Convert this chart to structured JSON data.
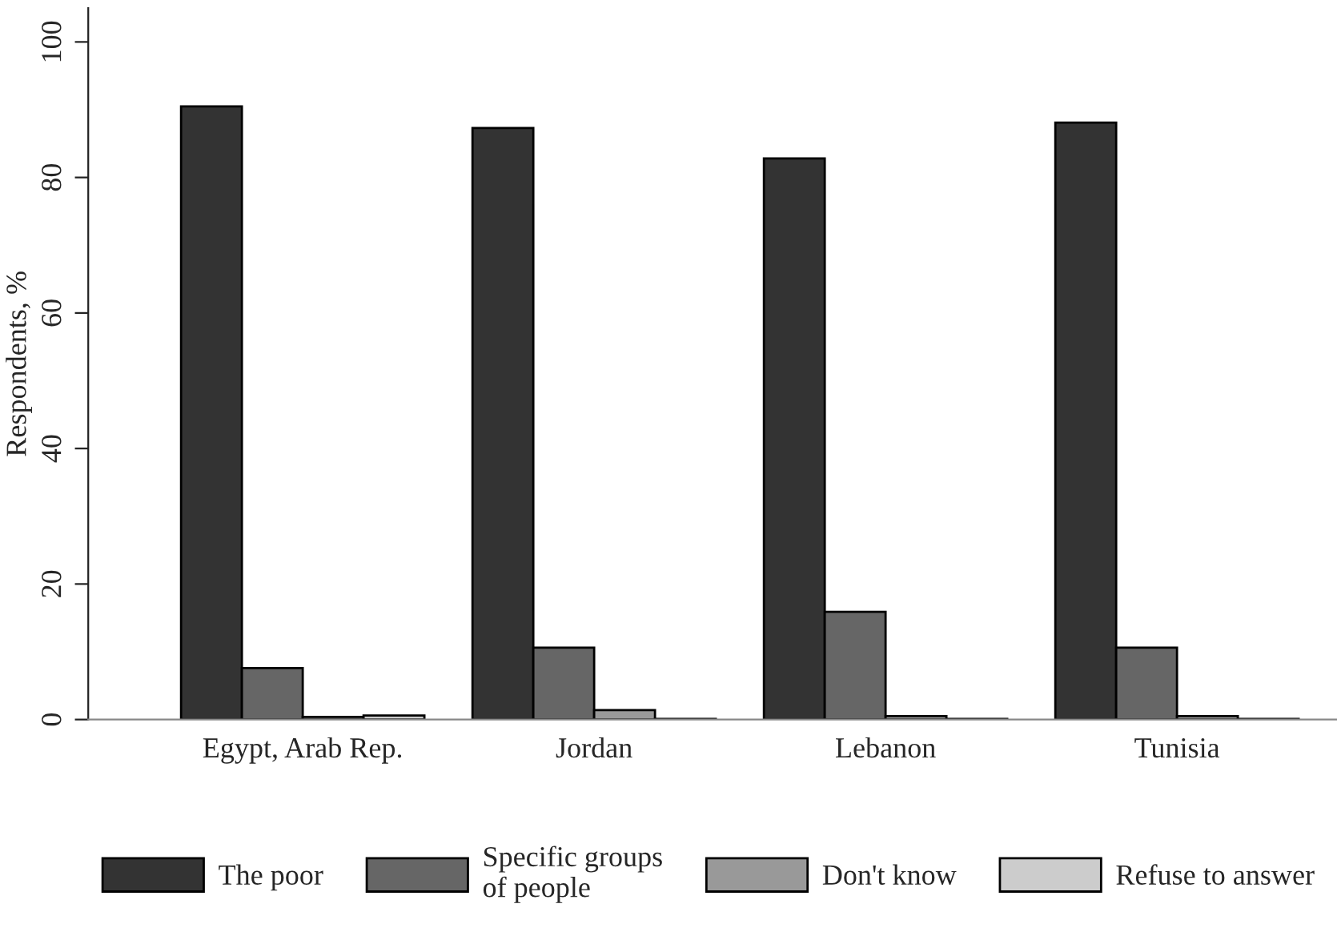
{
  "chart_data": {
    "type": "bar",
    "ylabel": "Respondents, %",
    "categories": [
      "Egypt, Arab Rep.",
      "Jordan",
      "Lebanon",
      "Tunisia"
    ],
    "series": [
      {
        "name": "The poor",
        "color": "#333333",
        "values": [
          90.5,
          87.3,
          82.8,
          88.1
        ]
      },
      {
        "name": "Specific groups\nof people",
        "color": "#666666",
        "values": [
          7.6,
          10.6,
          15.9,
          10.6
        ]
      },
      {
        "name": "Don't know",
        "color": "#999999",
        "values": [
          0.4,
          1.4,
          0.5,
          0.5
        ]
      },
      {
        "name": "Refuse to answer",
        "color": "#cccccc",
        "values": [
          0.6,
          0.1,
          0.1,
          0.1
        ]
      }
    ],
    "ylim": [
      0,
      105
    ],
    "yticks": [
      0,
      20,
      40,
      60,
      80,
      100
    ],
    "grid": false,
    "legend": "bottom"
  }
}
